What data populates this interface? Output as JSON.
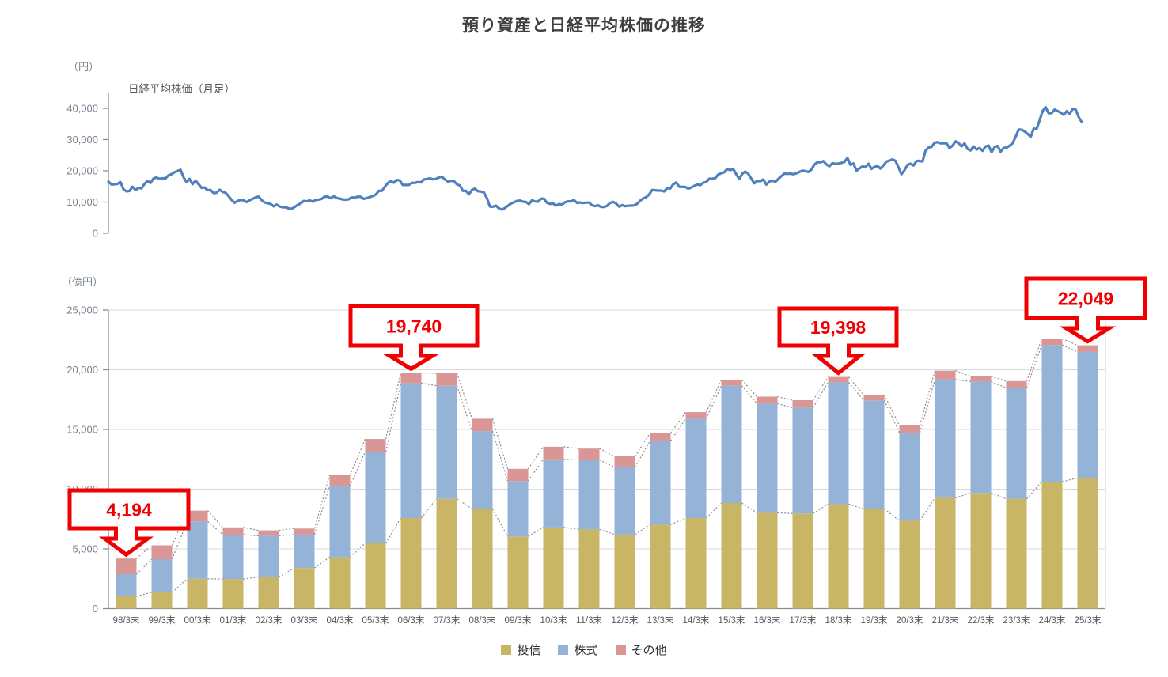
{
  "page": {
    "title": "預り資産と日経平均株価の推移"
  },
  "chart_data": [
    {
      "type": "line",
      "name": "nikkei",
      "title": "日経平均株価（月足）",
      "unit": "（円）",
      "x_start": "1998/3",
      "x_end": "2025/3",
      "interval": "monthly",
      "ylim": [
        0,
        40000
      ],
      "yticks": [
        0,
        10000,
        20000,
        30000,
        40000
      ],
      "line_color": "#4f81bd",
      "values": [
        16527,
        15641,
        15670,
        15830,
        16379,
        14107,
        13406,
        13565,
        14884,
        13842,
        14499,
        14368,
        15837,
        16702,
        16112,
        17530,
        17862,
        17431,
        17605,
        17582,
        18558,
        18934,
        19539,
        19959,
        20337,
        17974,
        16332,
        17411,
        15727,
        16861,
        15747,
        14540,
        14649,
        13786,
        13844,
        12884,
        12999,
        13934,
        13262,
        12969,
        11861,
        10714,
        9775,
        10366,
        10697,
        10543,
        9998,
        10588,
        11025,
        11492,
        11764,
        10622,
        9878,
        9619,
        9383,
        8640,
        9216,
        8579,
        8339,
        8363,
        7973,
        7831,
        8425,
        9083,
        9563,
        10343,
        10219,
        10559,
        10100,
        10677,
        10784,
        11041,
        11715,
        11762,
        11236,
        11859,
        11326,
        11082,
        10824,
        10772,
        10899,
        11489,
        11387,
        11740,
        11669,
        11009,
        11277,
        11584,
        11900,
        12414,
        13574,
        13606,
        14872,
        16111,
        16649,
        16205,
        17060,
        16906,
        15467,
        15505,
        15457,
        16141,
        16128,
        16399,
        16274,
        17226,
        17383,
        17604,
        17288,
        17400,
        17876,
        18138,
        17249,
        16569,
        16786,
        16738,
        15681,
        15308,
        13592,
        13603,
        12526,
        13850,
        14339,
        13481,
        13377,
        13073,
        11260,
        8577,
        8512,
        8860,
        7994,
        7568,
        8110,
        8828,
        9523,
        9958,
        10357,
        10493,
        10133,
        10035,
        9346,
        10546,
        10198,
        10126,
        11090,
        11057,
        9769,
        9383,
        9537,
        8824,
        9369,
        9202,
        9937,
        10229,
        10237,
        10624,
        9755,
        9850,
        9694,
        9816,
        9833,
        8955,
        8700,
        8988,
        8435,
        8455,
        8803,
        9723,
        10084,
        9521,
        8543,
        9007,
        8695,
        8840,
        8870,
        8928,
        9446,
        10395,
        11139,
        11560,
        12398,
        13861,
        13775,
        13677,
        13668,
        13389,
        14456,
        14328,
        15662,
        16291,
        14915,
        14841,
        14828,
        14304,
        14632,
        15162,
        15621,
        15425,
        16174,
        16414,
        17460,
        17451,
        17674,
        18798,
        19207,
        19520,
        20563,
        20236,
        20585,
        18890,
        17388,
        19083,
        19747,
        19034,
        17518,
        16027,
        16759,
        16666,
        17235,
        15576,
        16569,
        16887,
        16450,
        17425,
        18308,
        19114,
        19041,
        19119,
        18909,
        19197,
        19651,
        20033,
        19925,
        19646,
        20356,
        22012,
        22725,
        22765,
        23098,
        22068,
        21454,
        22468,
        22202,
        22305,
        22554,
        22865,
        24120,
        21920,
        22351,
        20015,
        20773,
        21385,
        21206,
        22259,
        20601,
        21276,
        21522,
        20704,
        21756,
        22927,
        23294,
        23657,
        23205,
        21143,
        18917,
        20194,
        21878,
        22288,
        21710,
        23140,
        23185,
        22977,
        26434,
        27444,
        27663,
        28966,
        29179,
        28813,
        28860,
        28792,
        27284,
        28090,
        29453,
        28893,
        27822,
        28792,
        27002,
        26527,
        27821,
        26848,
        27280,
        26393,
        27801,
        28092,
        25937,
        27587,
        27969,
        26095,
        27327,
        27446,
        28041,
        28856,
        30888,
        33189,
        33172,
        32619,
        31858,
        30859,
        33487,
        33464,
        36287,
        39166,
        40369,
        38406,
        38488,
        39583,
        39102,
        38648,
        37920,
        39081,
        38208,
        39895,
        39572,
        37156,
        35618
      ]
    },
    {
      "type": "bar",
      "stacked": true,
      "name": "assets",
      "unit": "（億円）",
      "ylim": [
        0,
        25000
      ],
      "yticks": [
        0,
        5000,
        10000,
        15000,
        20000,
        25000
      ],
      "legend_position": "bottom",
      "accent_red": "#f00000",
      "categories": [
        "98/3末",
        "99/3末",
        "00/3末",
        "01/3末",
        "02/3末",
        "03/3末",
        "04/3末",
        "05/3末",
        "06/3末",
        "07/3末",
        "08/3末",
        "09/3末",
        "10/3末",
        "11/3末",
        "12/3末",
        "13/3末",
        "14/3末",
        "15/3末",
        "16/3末",
        "17/3末",
        "18/3末",
        "19/3末",
        "20/3末",
        "21/3末",
        "22/3末",
        "23/3末",
        "24/3末",
        "25/3末"
      ],
      "series": [
        {
          "name": "投信",
          "color": "#c9b566",
          "values": [
            1030,
            1360,
            2500,
            2480,
            2650,
            3400,
            4310,
            5480,
            7580,
            9190,
            8350,
            6040,
            6800,
            6630,
            6210,
            7030,
            7580,
            8840,
            8020,
            7960,
            8750,
            8350,
            7360,
            9280,
            9680,
            9190,
            10620,
            10950
          ]
        },
        {
          "name": "株式",
          "color": "#95b3d7",
          "values": [
            1850,
            2780,
            4800,
            3710,
            3450,
            2800,
            5960,
            7650,
            11300,
            9470,
            6510,
            4640,
            5700,
            5820,
            5640,
            7010,
            8320,
            9820,
            9140,
            8870,
            10200,
            9080,
            7370,
            9900,
            9330,
            9290,
            11450,
            10550
          ]
        },
        {
          "name": "その他",
          "color": "#d99694",
          "values": [
            1314,
            1160,
            900,
            610,
            450,
            500,
            900,
            1070,
            860,
            1040,
            1040,
            1020,
            1050,
            950,
            900,
            660,
            550,
            490,
            590,
            620,
            448,
            450,
            620,
            750,
            440,
            570,
            530,
            549
          ]
        }
      ],
      "callouts": [
        {
          "label": "4,194",
          "category": "98/3末",
          "value": 4194
        },
        {
          "label": "19,740",
          "category": "06/3末",
          "value": 19740
        },
        {
          "label": "19,398",
          "category": "18/3末",
          "value": 19398
        },
        {
          "label": "22,049",
          "category": "25/3末",
          "value": 22049
        }
      ]
    }
  ]
}
